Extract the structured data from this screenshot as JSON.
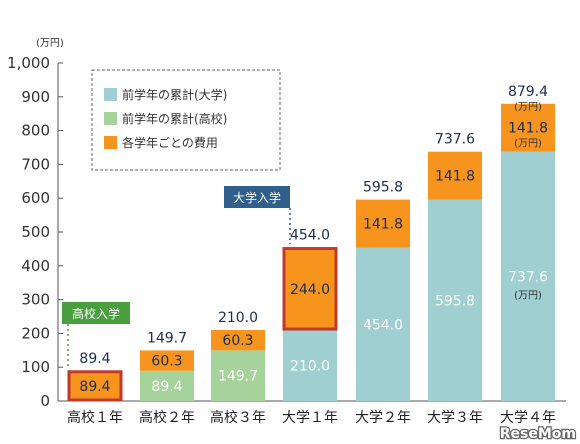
{
  "chart_data": {
    "type": "bar",
    "stacked": true,
    "unit_label": "(万円)",
    "y_ticks": [
      "1,000",
      "900",
      "800",
      "700",
      "600",
      "500",
      "400",
      "300",
      "200",
      "100",
      "0"
    ],
    "ylim": [
      0,
      1000
    ],
    "categories": [
      "高校１年",
      "高校２年",
      "高校３年",
      "大学１年",
      "大学２年",
      "大学３年",
      "大学４年"
    ],
    "series": [
      {
        "name": "前学年の累計(大学)",
        "color": "#9fcfd0",
        "values": [
          0,
          0,
          0,
          210.0,
          454.0,
          595.8,
          737.6
        ],
        "labels": [
          "",
          "",
          "",
          "210.0",
          "454.0",
          "595.8",
          "737.6"
        ]
      },
      {
        "name": "前学年の累計(高校)",
        "color": "#a6d39b",
        "values": [
          0,
          89.4,
          149.7,
          0,
          0,
          0,
          0
        ],
        "labels": [
          "",
          "89.4",
          "149.7",
          "",
          "",
          "",
          ""
        ]
      },
      {
        "name": "各学年ごとの費用",
        "color": "#f7941d",
        "values": [
          89.4,
          60.3,
          60.3,
          244.0,
          141.8,
          141.8,
          141.8
        ],
        "labels": [
          "89.4",
          "60.3",
          "60.3",
          "244.0",
          "141.8",
          "141.8",
          "141.8"
        ]
      }
    ],
    "totals": [
      "89.4",
      "149.7",
      "210.0",
      "454.0",
      "595.8",
      "737.6",
      "879.4"
    ],
    "annotations": {
      "last_total_unit": "(万円)",
      "last_cost_unit": "(万円)",
      "last_base_unit": "(万円)",
      "callout_high_school": "高校入学",
      "callout_university": "大学入学",
      "highlighted_bars": [
        "高校１年",
        "大学１年"
      ]
    },
    "legend_placement": "top-left",
    "grid": false
  },
  "watermark": "ReseMom"
}
